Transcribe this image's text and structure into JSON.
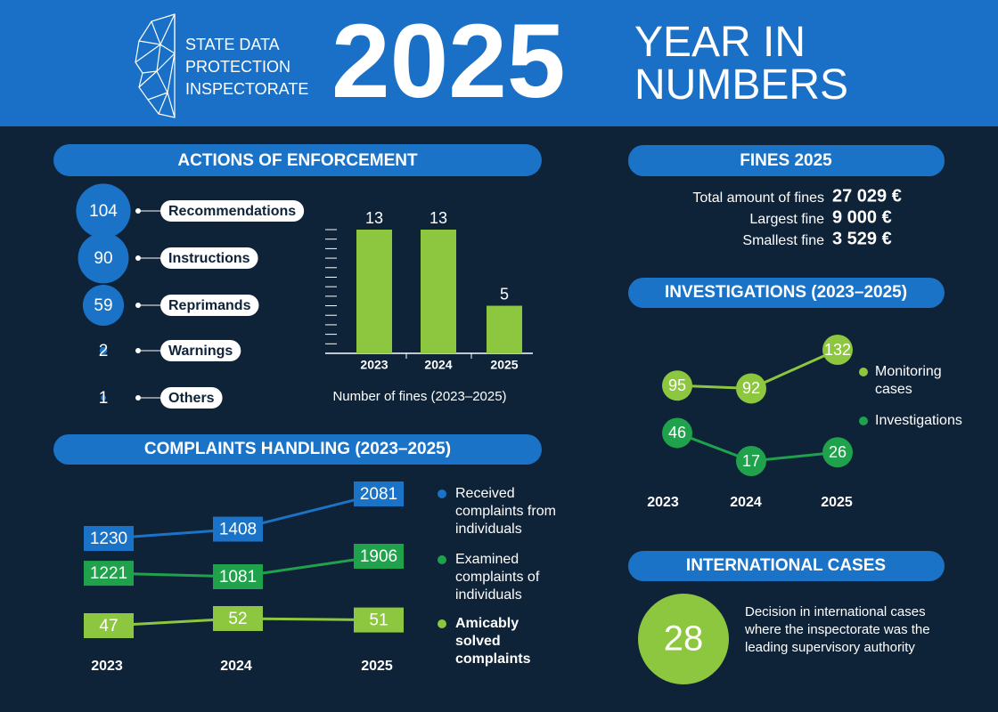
{
  "header": {
    "org": "STATE DATA PROTECTION INSPECTORATE",
    "year": "2025",
    "title": "YEAR IN NUMBERS"
  },
  "enforcement": {
    "title": "ACTIONS OF ENFORCEMENT",
    "items": [
      {
        "label": "Recommendations",
        "value": 104
      },
      {
        "label": "Instructions",
        "value": 90
      },
      {
        "label": "Reprimands",
        "value": 59
      },
      {
        "label": "Warnings",
        "value": 2
      },
      {
        "label": "Others",
        "value": 1
      }
    ]
  },
  "fines_chart": {
    "type": "bar",
    "caption": "Number of fines (2023–2025)",
    "categories": [
      "2023",
      "2024",
      "2025"
    ],
    "values": [
      13,
      13,
      5
    ],
    "color": "#8dc63f",
    "ylim": [
      0,
      13
    ],
    "yticks": [
      1,
      2,
      3,
      4,
      5,
      6,
      7,
      8,
      9,
      10,
      11,
      12,
      13
    ]
  },
  "fines": {
    "title": "FINES 2025",
    "rows": [
      {
        "label": "Total amount of fines",
        "amount": "27 029 €"
      },
      {
        "label": "Largest fine",
        "amount": "9 000 €"
      },
      {
        "label": "Smallest fine",
        "amount": "3 529 €"
      }
    ]
  },
  "investigations": {
    "type": "line",
    "title": "INVESTIGATIONS (2023–2025)",
    "categories": [
      "2023",
      "2024",
      "2025"
    ],
    "series": [
      {
        "name": "Monitoring cases",
        "color": "#8dc63f",
        "values": [
          95,
          92,
          132
        ]
      },
      {
        "name": "Investigations",
        "color": "#1fa24b",
        "values": [
          46,
          17,
          26
        ]
      }
    ]
  },
  "complaints": {
    "type": "line",
    "title": "COMPLAINTS HANDLING (2023–2025)",
    "categories": [
      "2023",
      "2024",
      "2025"
    ],
    "series": [
      {
        "name": "Received complaints from individuals",
        "color": "#1b73c8",
        "values": [
          1230,
          1408,
          2081
        ]
      },
      {
        "name": "Examined complaints of individuals",
        "color": "#1fa24b",
        "values": [
          1221,
          1081,
          1906
        ]
      },
      {
        "name": "Amicably solved complaints",
        "color": "#8dc63f",
        "values": [
          47,
          52,
          51
        ]
      }
    ]
  },
  "international": {
    "title": "INTERNATIONAL CASES",
    "value": "28",
    "text": "Decision in international cases where the inspectorate was the leading supervisory authority"
  }
}
